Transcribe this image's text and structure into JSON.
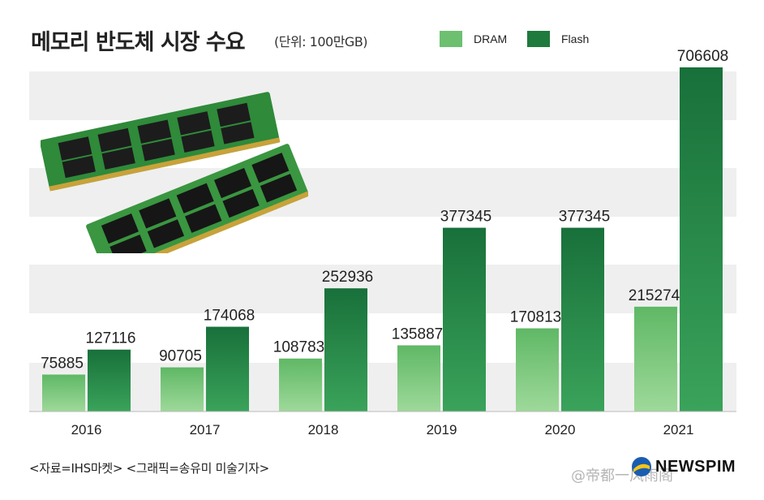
{
  "header": {
    "title": "메모리 반도체 시장 수요",
    "unit": "(단위: 100만GB)"
  },
  "legend": [
    {
      "label": "DRAM",
      "color": "#6cc070"
    },
    {
      "label": "Flash",
      "color": "#1f7a3e"
    }
  ],
  "footer": {
    "source": "<자료=IHS마켓> <그래픽=송유미 미술기자>",
    "logo": "NEWSPIM",
    "watermark": "@帝都一风雨阁"
  },
  "chart_data": {
    "type": "bar",
    "categories": [
      "2016",
      "2017",
      "2018",
      "2019",
      "2020",
      "2021"
    ],
    "series": [
      {
        "name": "DRAM",
        "values": [
          75885,
          90705,
          108783,
          135887,
          170813,
          215274
        ],
        "color": "#6cc070"
      },
      {
        "name": "Flash",
        "values": [
          127116,
          174068,
          252936,
          377345,
          377345,
          706608
        ],
        "color": "#1f7a3e"
      }
    ],
    "ylim": [
      0,
      706608
    ],
    "grid": "alternating horizontal bands",
    "legend_position": "top-right"
  }
}
